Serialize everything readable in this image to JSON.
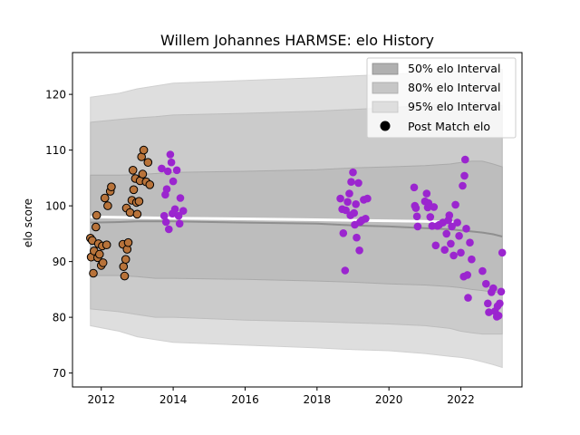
{
  "chart_data": {
    "type": "scatter",
    "title": "Willem Johannes HARMSE: elo History",
    "xlabel": "",
    "ylabel": "elo score",
    "xlim": [
      2011.2,
      2023.7
    ],
    "ylim": [
      67.5,
      127.5
    ],
    "x_ticks": [
      2012,
      2014,
      2016,
      2018,
      2020,
      2022
    ],
    "y_ticks": [
      70,
      80,
      90,
      100,
      110,
      120
    ],
    "grid": false,
    "legend": {
      "placement": "top-right",
      "entries": [
        {
          "label": "50% elo Interval",
          "color": "#b0b0b0",
          "kind": "patch"
        },
        {
          "label": "80% elo Interval",
          "color": "#c6c6c6",
          "kind": "patch"
        },
        {
          "label": "95% elo Interval",
          "color": "#dedede",
          "kind": "patch"
        },
        {
          "label": "Post Match elo",
          "color": "#000000",
          "kind": "marker"
        }
      ]
    },
    "bands": {
      "x": [
        2011.7,
        2012.5,
        2013.0,
        2013.5,
        2014.0,
        2016.0,
        2018.0,
        2019.0,
        2020.0,
        2021.0,
        2021.7,
        2022.0,
        2022.3,
        2022.6,
        2022.9,
        2023.15
      ],
      "p95_upper": [
        119.5,
        120.2,
        121.0,
        121.5,
        122.0,
        122.5,
        123.0,
        123.3,
        123.6,
        123.9,
        124.0,
        124.3,
        124.5,
        124.5,
        124.5,
        124.5
      ],
      "p95_lower": [
        78.5,
        77.5,
        76.5,
        76.0,
        75.5,
        75.0,
        74.5,
        74.2,
        74.0,
        73.5,
        73.0,
        72.8,
        72.5,
        72.0,
        71.5,
        71.0
      ],
      "p80_upper": [
        115.0,
        115.5,
        115.8,
        116.0,
        116.3,
        116.6,
        117.0,
        117.3,
        117.6,
        118.0,
        118.3,
        118.5,
        118.7,
        118.5,
        118.2,
        118.0
      ],
      "p80_lower": [
        81.5,
        81.0,
        80.5,
        80.0,
        80.0,
        79.5,
        79.2,
        79.0,
        78.8,
        78.5,
        78.0,
        77.5,
        77.2,
        77.0,
        77.0,
        77.0
      ],
      "p50_upper": [
        105.5,
        105.5,
        105.6,
        105.8,
        106.0,
        106.2,
        106.5,
        106.8,
        107.0,
        107.2,
        107.5,
        107.8,
        108.0,
        108.0,
        107.5,
        107.0
      ],
      "p50_lower": [
        87.5,
        87.5,
        87.3,
        87.0,
        87.0,
        86.8,
        86.5,
        86.3,
        86.0,
        85.8,
        85.5,
        85.3,
        85.0,
        84.8,
        84.5,
        84.5
      ],
      "mean": [
        97.0,
        97.1,
        97.2,
        97.2,
        97.2,
        97.0,
        96.8,
        96.5,
        96.3,
        96.0,
        95.8,
        95.6,
        95.4,
        95.2,
        94.9,
        94.5
      ],
      "white_line_x": [
        2011.7,
        2014.0,
        2018.0,
        2021.0,
        2021.9
      ],
      "white_line_y": [
        98.0,
        97.8,
        97.5,
        97.2,
        97.0
      ]
    },
    "series": [
      {
        "name": "Post Match elo",
        "color": "#b8733a",
        "points": [
          [
            2011.7,
            94.2
          ],
          [
            2011.72,
            90.8
          ],
          [
            2011.75,
            93.8
          ],
          [
            2011.78,
            87.9
          ],
          [
            2011.8,
            91.9
          ],
          [
            2011.85,
            96.2
          ],
          [
            2011.87,
            98.3
          ],
          [
            2011.9,
            90.7
          ],
          [
            2011.92,
            93.2
          ],
          [
            2011.95,
            91.3
          ],
          [
            2012.0,
            89.3
          ],
          [
            2012.03,
            92.8
          ],
          [
            2012.05,
            89.8
          ],
          [
            2012.1,
            101.4
          ],
          [
            2012.15,
            93.0
          ],
          [
            2012.18,
            100.0
          ],
          [
            2012.25,
            102.6
          ],
          [
            2012.28,
            103.4
          ],
          [
            2012.6,
            93.1
          ],
          [
            2012.62,
            89.1
          ],
          [
            2012.65,
            87.4
          ],
          [
            2012.68,
            90.4
          ],
          [
            2012.7,
            99.6
          ],
          [
            2012.72,
            92.2
          ],
          [
            2012.75,
            93.4
          ],
          [
            2012.8,
            98.8
          ],
          [
            2012.85,
            101.0
          ],
          [
            2012.88,
            106.4
          ],
          [
            2012.9,
            102.9
          ],
          [
            2012.95,
            104.9
          ],
          [
            2012.98,
            100.6
          ],
          [
            2013.0,
            98.5
          ],
          [
            2013.05,
            100.8
          ],
          [
            2013.08,
            104.5
          ],
          [
            2013.12,
            108.8
          ],
          [
            2013.15,
            105.7
          ],
          [
            2013.18,
            110.0
          ],
          [
            2013.25,
            104.3
          ],
          [
            2013.3,
            107.8
          ],
          [
            2013.35,
            103.8
          ]
        ]
      },
      {
        "name": "Post Match elo",
        "color": "#9b25cf",
        "points": [
          [
            2013.68,
            106.7
          ],
          [
            2013.75,
            98.2
          ],
          [
            2013.78,
            102.0
          ],
          [
            2013.8,
            97.1
          ],
          [
            2013.82,
            103.0
          ],
          [
            2013.85,
            106.2
          ],
          [
            2013.88,
            95.8
          ],
          [
            2013.92,
            109.2
          ],
          [
            2013.95,
            107.8
          ],
          [
            2013.98,
            98.6
          ],
          [
            2014.0,
            104.4
          ],
          [
            2014.05,
            99.4
          ],
          [
            2014.1,
            106.4
          ],
          [
            2014.15,
            98.2
          ],
          [
            2014.18,
            96.8
          ],
          [
            2014.2,
            101.4
          ],
          [
            2014.28,
            99.1
          ],
          [
            2018.65,
            101.3
          ],
          [
            2018.7,
            99.4
          ],
          [
            2018.73,
            95.1
          ],
          [
            2018.78,
            88.4
          ],
          [
            2018.8,
            99.2
          ],
          [
            2018.85,
            100.7
          ],
          [
            2018.9,
            102.2
          ],
          [
            2018.93,
            98.3
          ],
          [
            2018.95,
            104.3
          ],
          [
            2019.0,
            106.0
          ],
          [
            2019.03,
            98.7
          ],
          [
            2019.05,
            96.6
          ],
          [
            2019.08,
            100.3
          ],
          [
            2019.1,
            94.3
          ],
          [
            2019.15,
            104.1
          ],
          [
            2019.18,
            92.0
          ],
          [
            2019.2,
            97.1
          ],
          [
            2019.25,
            97.4
          ],
          [
            2019.3,
            101.1
          ],
          [
            2019.35,
            97.7
          ],
          [
            2019.4,
            101.3
          ],
          [
            2020.7,
            103.3
          ],
          [
            2020.72,
            100.0
          ],
          [
            2020.75,
            99.6
          ],
          [
            2020.78,
            98.1
          ],
          [
            2020.8,
            96.3
          ],
          [
            2021.0,
            100.8
          ],
          [
            2021.05,
            102.2
          ],
          [
            2021.08,
            99.7
          ],
          [
            2021.1,
            100.5
          ],
          [
            2021.15,
            98.0
          ],
          [
            2021.2,
            96.4
          ],
          [
            2021.25,
            99.8
          ],
          [
            2021.3,
            92.9
          ],
          [
            2021.35,
            96.4
          ],
          [
            2021.4,
            96.6
          ],
          [
            2021.5,
            97.0
          ],
          [
            2021.55,
            92.1
          ],
          [
            2021.6,
            95.0
          ],
          [
            2021.65,
            97.4
          ],
          [
            2021.68,
            98.3
          ],
          [
            2021.72,
            93.2
          ],
          [
            2021.75,
            96.3
          ],
          [
            2021.8,
            91.1
          ],
          [
            2021.85,
            100.2
          ],
          [
            2021.9,
            97.0
          ],
          [
            2021.95,
            94.6
          ],
          [
            2022.0,
            91.6
          ],
          [
            2022.05,
            103.6
          ],
          [
            2022.08,
            87.3
          ],
          [
            2022.1,
            105.4
          ],
          [
            2022.12,
            108.3
          ],
          [
            2022.15,
            95.9
          ],
          [
            2022.18,
            87.6
          ],
          [
            2022.2,
            83.5
          ],
          [
            2022.25,
            93.4
          ],
          [
            2022.3,
            90.4
          ],
          [
            2022.6,
            88.3
          ],
          [
            2022.7,
            86.0
          ],
          [
            2022.75,
            82.5
          ],
          [
            2022.78,
            80.9
          ],
          [
            2022.85,
            84.5
          ],
          [
            2022.9,
            85.2
          ],
          [
            2022.95,
            81.1
          ],
          [
            2023.0,
            80.1
          ],
          [
            2023.02,
            82.0
          ],
          [
            2023.05,
            80.3
          ],
          [
            2023.08,
            82.5
          ],
          [
            2023.12,
            84.6
          ],
          [
            2023.15,
            91.6
          ]
        ]
      }
    ]
  }
}
